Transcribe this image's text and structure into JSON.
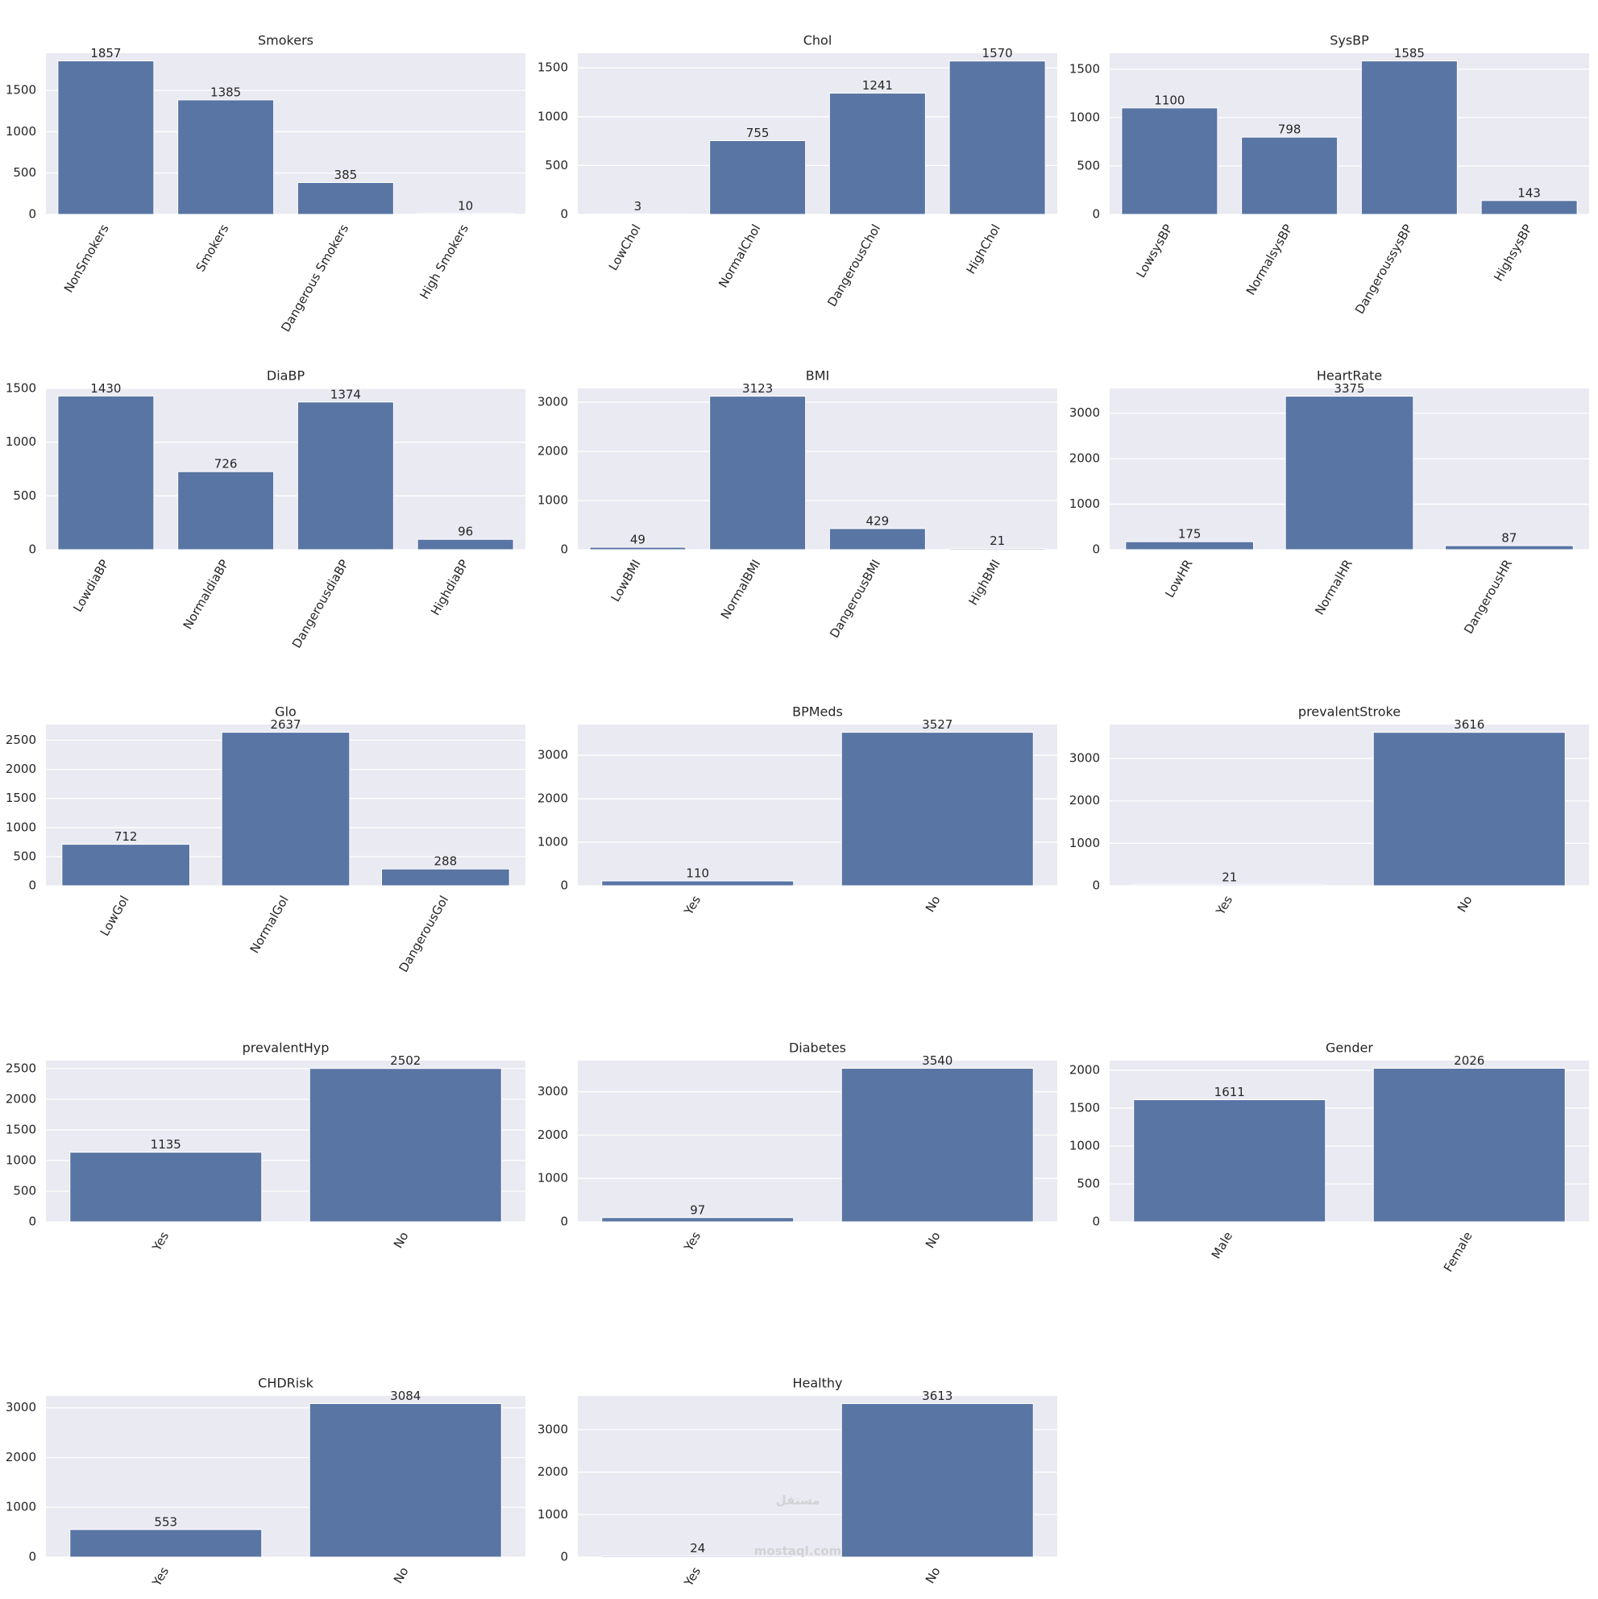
{
  "chart_data": [
    {
      "type": "bar",
      "title": "Smokers",
      "categories": [
        "NonSmokers",
        "Smokers",
        "Dangerous Smokers",
        "High Smokers"
      ],
      "values": [
        1857,
        1385,
        385,
        10
      ],
      "color": "#5975a4",
      "ylim": [
        0,
        1950
      ],
      "yticks": [
        0,
        500,
        1000,
        1500
      ],
      "grid": true
    },
    {
      "type": "bar",
      "title": "Chol",
      "categories": [
        "LowChol",
        "NormalChol",
        "DangerousChol",
        "HighChol"
      ],
      "values": [
        3,
        755,
        1241,
        1570
      ],
      "color": "#5975a4",
      "ylim": [
        0,
        1650
      ],
      "yticks": [
        0,
        500,
        1000,
        1500
      ],
      "grid": true
    },
    {
      "type": "bar",
      "title": "SysBP",
      "categories": [
        "LowsysBP",
        "NormalsysBP",
        "DangeroussysBP",
        "HighsysBP"
      ],
      "values": [
        1100,
        798,
        1585,
        143
      ],
      "color": "#5975a4",
      "ylim": [
        0,
        1665
      ],
      "yticks": [
        0,
        500,
        1000,
        1500
      ],
      "grid": true
    },
    {
      "type": "bar",
      "title": "DiaBP",
      "categories": [
        "LowdiaBP",
        "NormaldiaBP",
        "DangerousdiaBP",
        "HighdiaBP"
      ],
      "values": [
        1430,
        726,
        1374,
        96
      ],
      "color": "#5975a4",
      "ylim": [
        0,
        1500
      ],
      "yticks": [
        0,
        500,
        1000,
        1500
      ],
      "grid": true
    },
    {
      "type": "bar",
      "title": "BMI",
      "categories": [
        "LowBMI",
        "NormalBMI",
        "DangerousBMI",
        "HighBMI"
      ],
      "values": [
        49,
        3123,
        429,
        21
      ],
      "color": "#5975a4",
      "ylim": [
        0,
        3280
      ],
      "yticks": [
        0,
        1000,
        2000,
        3000
      ],
      "grid": true
    },
    {
      "type": "bar",
      "title": "HeartRate",
      "categories": [
        "LowHR",
        "NormalHR",
        "DangerousHR"
      ],
      "values": [
        175,
        3375,
        87
      ],
      "color": "#5975a4",
      "ylim": [
        0,
        3545
      ],
      "yticks": [
        0,
        1000,
        2000,
        3000
      ],
      "grid": true
    },
    {
      "type": "bar",
      "title": "Glo",
      "categories": [
        "LowGol",
        "NormalGol",
        "DangerousGol"
      ],
      "values": [
        712,
        2637,
        288
      ],
      "color": "#5975a4",
      "ylim": [
        0,
        2770
      ],
      "yticks": [
        0,
        500,
        1000,
        1500,
        2000,
        2500
      ],
      "grid": true
    },
    {
      "type": "bar",
      "title": "BPMeds",
      "categories": [
        "Yes",
        "No"
      ],
      "values": [
        110,
        3527
      ],
      "color": "#5975a4",
      "ylim": [
        0,
        3705
      ],
      "yticks": [
        0,
        1000,
        2000,
        3000
      ],
      "grid": true
    },
    {
      "type": "bar",
      "title": "prevalentStroke",
      "categories": [
        "Yes",
        "No"
      ],
      "values": [
        21,
        3616
      ],
      "color": "#5975a4",
      "ylim": [
        0,
        3800
      ],
      "yticks": [
        0,
        1000,
        2000,
        3000
      ],
      "grid": true
    },
    {
      "type": "bar",
      "title": "prevalentHyp",
      "categories": [
        "Yes",
        "No"
      ],
      "values": [
        1135,
        2502
      ],
      "color": "#5975a4",
      "ylim": [
        0,
        2630
      ],
      "yticks": [
        0,
        500,
        1000,
        1500,
        2000,
        2500
      ],
      "grid": true
    },
    {
      "type": "bar",
      "title": "Diabetes",
      "categories": [
        "Yes",
        "No"
      ],
      "values": [
        97,
        3540
      ],
      "color": "#5975a4",
      "ylim": [
        0,
        3717
      ],
      "yticks": [
        0,
        1000,
        2000,
        3000
      ],
      "grid": true
    },
    {
      "type": "bar",
      "title": "Gender",
      "categories": [
        "Male",
        "Female"
      ],
      "values": [
        1611,
        2026
      ],
      "color": "#5975a4",
      "ylim": [
        0,
        2127
      ],
      "yticks": [
        0,
        500,
        1000,
        1500,
        2000
      ],
      "grid": true
    },
    {
      "type": "bar",
      "title": "CHDRisk",
      "categories": [
        "Yes",
        "No"
      ],
      "values": [
        553,
        3084
      ],
      "color": "#5975a4",
      "ylim": [
        0,
        3238
      ],
      "yticks": [
        0,
        1000,
        2000,
        3000
      ],
      "grid": true
    },
    {
      "type": "bar",
      "title": "Healthy",
      "categories": [
        "Yes",
        "No"
      ],
      "values": [
        24,
        3613
      ],
      "color": "#5975a4",
      "ylim": [
        0,
        3794
      ],
      "yticks": [
        0,
        1000,
        2000,
        3000
      ],
      "grid": true
    }
  ],
  "watermark": {
    "arabic": "مستقل",
    "latin": "mostaql.com"
  }
}
